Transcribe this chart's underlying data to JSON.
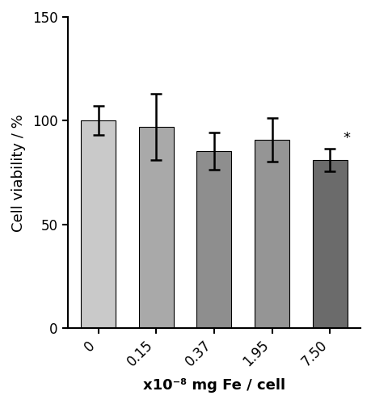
{
  "categories": [
    "0",
    "0.15",
    "0.37",
    "1.95",
    "7.50"
  ],
  "values": [
    100.0,
    97.0,
    85.5,
    91.0,
    81.0
  ],
  "errors": [
    7.0,
    16.0,
    9.0,
    10.5,
    5.5
  ],
  "bar_colors": [
    "#c9c9c9",
    "#a9a9a9",
    "#8e8e8e",
    "#959595",
    "#6b6b6b"
  ],
  "bar_edge_colors": [
    "#000000",
    "#000000",
    "#000000",
    "#000000",
    "#000000"
  ],
  "ylabel": "Cell viability / %",
  "xlabel": "x10⁻⁸ mg Fe / cell",
  "ylim": [
    0,
    150
  ],
  "yticks": [
    0,
    50,
    100,
    150
  ],
  "significance": [
    false,
    false,
    false,
    false,
    true
  ],
  "sig_symbol": "*",
  "bar_width": 0.6,
  "figsize": [
    4.6,
    5.0
  ],
  "dpi": 100,
  "tick_rotation": 45
}
